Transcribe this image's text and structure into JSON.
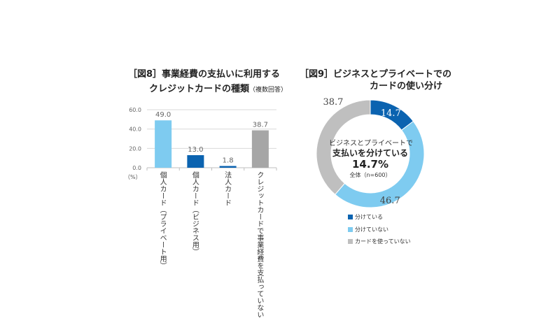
{
  "chart_data": [
    {
      "type": "bar",
      "title_line1": "［図8］事業経費の支払いに利用する",
      "title_line2": "クレジットカードの種類",
      "title_note": "（複数回答）",
      "ylabel": "（%）",
      "ylim": [
        0,
        60
      ],
      "yticks": [
        "0.0",
        "20.0",
        "40.0",
        "60.0"
      ],
      "categories": [
        "個人カード（プライベート用）",
        "個人カード（ビジネス用）",
        "法人カード",
        "クレジットカードで事業経費を支払っていない"
      ],
      "values": [
        49.0,
        13.0,
        1.8,
        38.7
      ],
      "value_labels": [
        "49.0",
        "13.0",
        "1.8",
        "38.7"
      ],
      "colors": [
        "#7ecbf0",
        "#0b63b0",
        "#0b63b0",
        "#a6a6a6"
      ]
    },
    {
      "type": "pie",
      "title_line1": "［図9］ビジネスとプライベートでの",
      "title_line2": "カードの使い分け",
      "labels": [
        "分けている",
        "分けていない",
        "カードを使っていない"
      ],
      "values": [
        14.7,
        46.7,
        38.7
      ],
      "value_labels": [
        "14.7",
        "46.7",
        "38.7"
      ],
      "colors": [
        "#0b63b0",
        "#7ecbf0",
        "#bfbfbf"
      ],
      "center_line1": "ビジネスとプライベートで",
      "center_line2": "支払いを分けている",
      "center_value": "14.7%",
      "center_note": "全体（n=600）"
    }
  ]
}
